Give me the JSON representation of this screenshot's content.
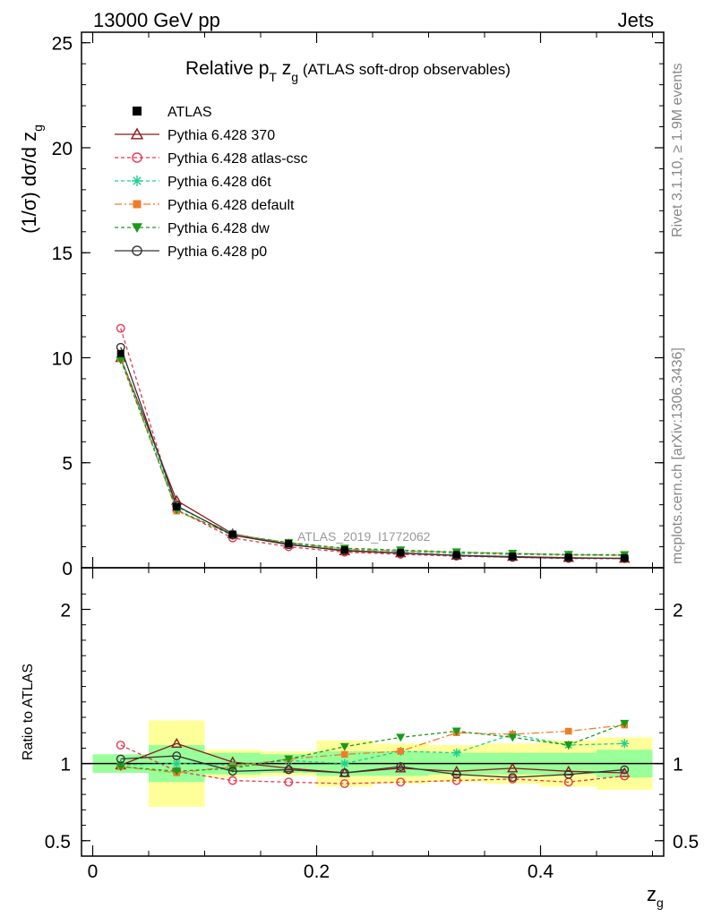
{
  "header": {
    "left": "13000 GeV pp",
    "right": "Jets"
  },
  "side_labels": {
    "rivet": "Rivet 3.1.10, ≥ 1.9M events",
    "mcplots": "mcplots.cern.ch [arXiv:1306.3436]"
  },
  "title": {
    "main_prefix": "Relative p",
    "main_sub1": "T",
    "main_z": " z",
    "main_sub2": "g",
    "suffix": " (ATLAS soft-drop observables)"
  },
  "watermark": "ATLAS_2019_I1772062",
  "axes": {
    "ylabel_main": "(1/σ) dσ/d z",
    "ylabel_main_sub": "g",
    "ylabel_ratio": "Ratio to ATLAS",
    "xlabel": "z",
    "xlabel_sub": "g"
  },
  "chart_data": {
    "type": "line",
    "x": [
      0.025,
      0.075,
      0.125,
      0.175,
      0.225,
      0.275,
      0.325,
      0.375,
      0.425,
      0.475
    ],
    "xlim": [
      -0.01,
      0.51
    ],
    "main": {
      "ylim": [
        0,
        25.5
      ],
      "yticks": [
        0,
        5,
        10,
        15,
        20,
        25
      ],
      "ytick_labels": [
        "0",
        "5",
        "10",
        "15",
        "20",
        "25"
      ]
    },
    "ratio": {
      "ylim": [
        0.4,
        2.27
      ],
      "yticks": [
        0.5,
        1,
        2
      ],
      "ytick_labels": [
        "0.5",
        "1",
        "2"
      ]
    },
    "xticks": [
      0,
      0.2,
      0.4
    ],
    "xtick_labels": [
      "0",
      "0.2",
      "0.4"
    ],
    "data": {
      "name": "ATLAS",
      "values": [
        10.2,
        2.9,
        1.6,
        1.15,
        0.85,
        0.72,
        0.62,
        0.55,
        0.5,
        0.47
      ],
      "band_stat": [
        0.06,
        0.12,
        0.07,
        0.06,
        0.08,
        0.08,
        0.07,
        0.07,
        0.07,
        0.09
      ],
      "band_total": [
        0.05,
        0.28,
        0.09,
        0.08,
        0.15,
        0.13,
        0.12,
        0.13,
        0.15,
        0.17
      ]
    },
    "series": [
      {
        "name": "Pythia 6.428 370",
        "color": "#8b1a1a",
        "dash": "solid",
        "marker": "triangle-open",
        "values": [
          10.0,
          3.2,
          1.62,
          1.12,
          0.8,
          0.7,
          0.59,
          0.53,
          0.48,
          0.44
        ],
        "ratio": [
          0.99,
          1.13,
          1.01,
          0.97,
          0.94,
          0.97,
          0.95,
          0.97,
          0.95,
          0.94
        ]
      },
      {
        "name": "Pythia 6.428 atlas-csc",
        "color": "#e8384f",
        "dash": "4,3",
        "marker": "circle-open",
        "values": [
          11.4,
          2.75,
          1.42,
          1.0,
          0.74,
          0.64,
          0.55,
          0.5,
          0.44,
          0.43
        ],
        "ratio": [
          1.12,
          0.95,
          0.89,
          0.88,
          0.87,
          0.88,
          0.89,
          0.9,
          0.88,
          0.92
        ]
      },
      {
        "name": "Pythia 6.428 d6t",
        "color": "#1fcf8f",
        "dash": "4,3",
        "marker": "star",
        "values": [
          10.0,
          2.9,
          1.6,
          1.17,
          0.86,
          0.78,
          0.68,
          0.64,
          0.6,
          0.58
        ],
        "ratio": [
          0.99,
          1.0,
          0.99,
          1.02,
          1.0,
          1.08,
          1.07,
          1.19,
          1.12,
          1.13
        ]
      },
      {
        "name": "Pythia 6.428 default",
        "color": "#f07c2a",
        "dash": "8,3,2,3",
        "marker": "square",
        "values": [
          9.95,
          2.7,
          1.58,
          1.2,
          0.88,
          0.8,
          0.74,
          0.68,
          0.62,
          0.6
        ],
        "ratio": [
          0.98,
          0.94,
          0.98,
          1.03,
          1.06,
          1.08,
          1.2,
          1.19,
          1.21,
          1.25
        ]
      },
      {
        "name": "Pythia 6.428 dw",
        "color": "#1a9a1a",
        "dash": "4,3",
        "marker": "triangle-down",
        "values": [
          9.9,
          2.75,
          1.55,
          1.2,
          0.93,
          0.84,
          0.75,
          0.68,
          0.63,
          0.62
        ],
        "ratio": [
          0.98,
          0.95,
          0.97,
          1.03,
          1.11,
          1.17,
          1.21,
          1.17,
          1.12,
          1.26
        ]
      },
      {
        "name": "Pythia 6.428 p0",
        "color": "#333333",
        "dash": "solid",
        "marker": "circle-open",
        "values": [
          10.5,
          2.95,
          1.55,
          1.1,
          0.82,
          0.7,
          0.58,
          0.5,
          0.46,
          0.45
        ],
        "ratio": [
          1.03,
          1.05,
          0.95,
          0.96,
          0.94,
          0.98,
          0.93,
          0.91,
          0.93,
          0.96
        ]
      }
    ]
  }
}
